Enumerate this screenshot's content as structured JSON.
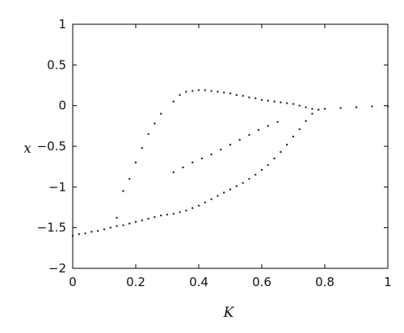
{
  "chart_data": {
    "type": "scatter",
    "title": "",
    "xlabel": "K",
    "ylabel": "x",
    "xlim": [
      0,
      1
    ],
    "ylim": [
      -2,
      1
    ],
    "x_ticks": [
      0,
      0.2,
      0.4,
      0.6,
      0.8,
      1
    ],
    "x_tick_labels": [
      "0",
      "0.2",
      "0.4",
      "0.6",
      "0.8",
      "1"
    ],
    "y_ticks": [
      1,
      0.5,
      0,
      -0.5,
      -1,
      -1.5,
      -2
    ],
    "y_tick_labels": [
      "1",
      "0.5",
      "0",
      "−0.5",
      "−1",
      "−1.5",
      "−2"
    ],
    "grid": false,
    "legend": "none",
    "marker_color": "#222222",
    "series": [
      {
        "description_free_points": true,
        "x": [
          0.0,
          0.02,
          0.04,
          0.06,
          0.08,
          0.1,
          0.12,
          0.14,
          0.16,
          0.18,
          0.2,
          0.22,
          0.24,
          0.26,
          0.28,
          0.3,
          0.32,
          0.34,
          0.36,
          0.38,
          0.4,
          0.42,
          0.44,
          0.46,
          0.48,
          0.5,
          0.52,
          0.54,
          0.56,
          0.58,
          0.6,
          0.62,
          0.64,
          0.66,
          0.68,
          0.7,
          0.72,
          0.74,
          0.76,
          0.78,
          0.8,
          0.85,
          0.9,
          0.95,
          1.0
        ],
        "y": [
          -1.6,
          -1.58,
          -1.57,
          -1.55,
          -1.54,
          -1.52,
          -1.5,
          -1.48,
          -1.47,
          -1.45,
          -1.43,
          -1.41,
          -1.39,
          -1.37,
          -1.35,
          -1.34,
          -1.33,
          -1.31,
          -1.29,
          -1.26,
          -1.23,
          -1.19,
          -1.15,
          -1.11,
          -1.07,
          -1.03,
          -0.99,
          -0.95,
          -0.9,
          -0.85,
          -0.79,
          -0.73,
          -0.65,
          -0.57,
          -0.48,
          -0.38,
          -0.29,
          -0.19,
          -0.1,
          -0.05,
          -0.04,
          -0.03,
          -0.02,
          -0.01,
          -0.01
        ]
      },
      {
        "x": [
          0.32,
          0.34,
          0.36,
          0.38,
          0.4,
          0.42,
          0.44,
          0.46,
          0.48,
          0.5,
          0.52,
          0.54,
          0.56,
          0.58,
          0.6,
          0.62,
          0.64,
          0.66,
          0.68,
          0.7,
          0.72,
          0.74,
          0.76,
          0.78
        ],
        "y": [
          0.05,
          0.13,
          0.17,
          0.18,
          0.19,
          0.19,
          0.18,
          0.17,
          0.16,
          0.15,
          0.13,
          0.12,
          0.1,
          0.09,
          0.07,
          0.06,
          0.05,
          0.04,
          0.03,
          0.02,
          0.0,
          -0.02,
          -0.04,
          -0.05
        ]
      },
      {
        "x": [
          0.32,
          0.35,
          0.38,
          0.41,
          0.44,
          0.47,
          0.5,
          0.53,
          0.56,
          0.59,
          0.62,
          0.65
        ],
        "y": [
          -0.82,
          -0.76,
          -0.7,
          -0.65,
          -0.6,
          -0.54,
          -0.48,
          -0.42,
          -0.36,
          -0.3,
          -0.25,
          -0.2
        ]
      },
      {
        "x": [
          0.14,
          0.16,
          0.18,
          0.2,
          0.22,
          0.24,
          0.26,
          0.28
        ],
        "y": [
          -1.38,
          -1.05,
          -0.9,
          -0.7,
          -0.52,
          -0.35,
          -0.22,
          -0.1
        ]
      }
    ]
  }
}
